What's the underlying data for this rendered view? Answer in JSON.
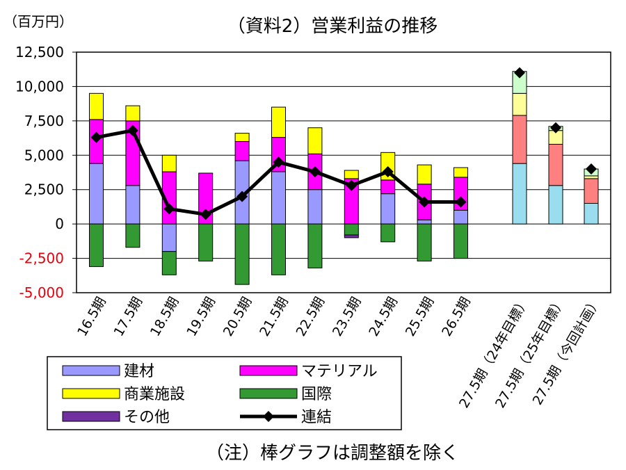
{
  "title": "（資料2）営業利益の推移",
  "unit": "（百万円）",
  "note": "（注）棒グラフは調整額を除く",
  "chart_data": {
    "type": "bar",
    "stacked": true,
    "ylim": [
      -5000,
      12500
    ],
    "yticks": [
      12500,
      10000,
      7500,
      5000,
      2500,
      0,
      -2500,
      -5000
    ],
    "ytick_labels": [
      "12,500",
      "10,000",
      "7,500",
      "5,000",
      "2,500",
      "0",
      "-2,500",
      "-5,000"
    ],
    "grid": true,
    "categories": [
      "16.5期",
      "17.5期",
      "18.5期",
      "19.5期",
      "20.5期",
      "21.5期",
      "22.5期",
      "23.5期",
      "24.5期",
      "25.5期",
      "26.5期"
    ],
    "series": [
      {
        "name": "建材",
        "color": "#9999ff",
        "values": [
          4400,
          2800,
          -2000,
          0,
          4600,
          3800,
          2500,
          0,
          2200,
          300,
          1000
        ]
      },
      {
        "name": "マテリアル",
        "color": "#ff00ff",
        "values": [
          3200,
          4700,
          3800,
          3700,
          1400,
          2500,
          2600,
          3300,
          1000,
          2600,
          2400
        ]
      },
      {
        "name": "商業施設",
        "color": "#ffff00",
        "values": [
          1900,
          1100,
          1200,
          0,
          600,
          2200,
          1900,
          600,
          2000,
          1400,
          700
        ]
      },
      {
        "name": "国際",
        "color": "#339933",
        "values": [
          -3100,
          -1700,
          -1700,
          -2700,
          -4400,
          -3700,
          -3200,
          -800,
          -1300,
          -2700,
          -2500
        ]
      },
      {
        "name": "その他",
        "color": "#7030a0",
        "values": [
          0,
          0,
          0,
          0,
          0,
          0,
          0,
          -200,
          0,
          0,
          0
        ]
      }
    ],
    "line": {
      "name": "連結",
      "values": [
        6300,
        6800,
        1100,
        700,
        2000,
        4500,
        3800,
        2800,
        3800,
        1600,
        1600
      ]
    },
    "target_categories": [
      "27.5期（24年目標）",
      "27.5期（25年目標）",
      "27.5期（今回計画）"
    ],
    "target_series": [
      {
        "color": "#99ddee",
        "values": [
          4400,
          2800,
          1500
        ]
      },
      {
        "color": "#ff8080",
        "values": [
          3500,
          3000,
          1800
        ]
      },
      {
        "color": "#ffff99",
        "values": [
          1600,
          1000,
          200
        ]
      },
      {
        "color": "#ccffcc",
        "values": [
          1600,
          300,
          500
        ]
      }
    ],
    "target_points": [
      11000,
      7000,
      4000
    ]
  },
  "legend": [
    {
      "label": "建材",
      "kind": "bar",
      "color": "#9999ff"
    },
    {
      "label": "マテリアル",
      "kind": "bar",
      "color": "#ff00ff"
    },
    {
      "label": "商業施設",
      "kind": "bar",
      "color": "#ffff00"
    },
    {
      "label": "国際",
      "kind": "bar",
      "color": "#339933"
    },
    {
      "label": "その他",
      "kind": "bar",
      "color": "#7030a0"
    },
    {
      "label": "連結",
      "kind": "line",
      "color": "#000000"
    }
  ]
}
